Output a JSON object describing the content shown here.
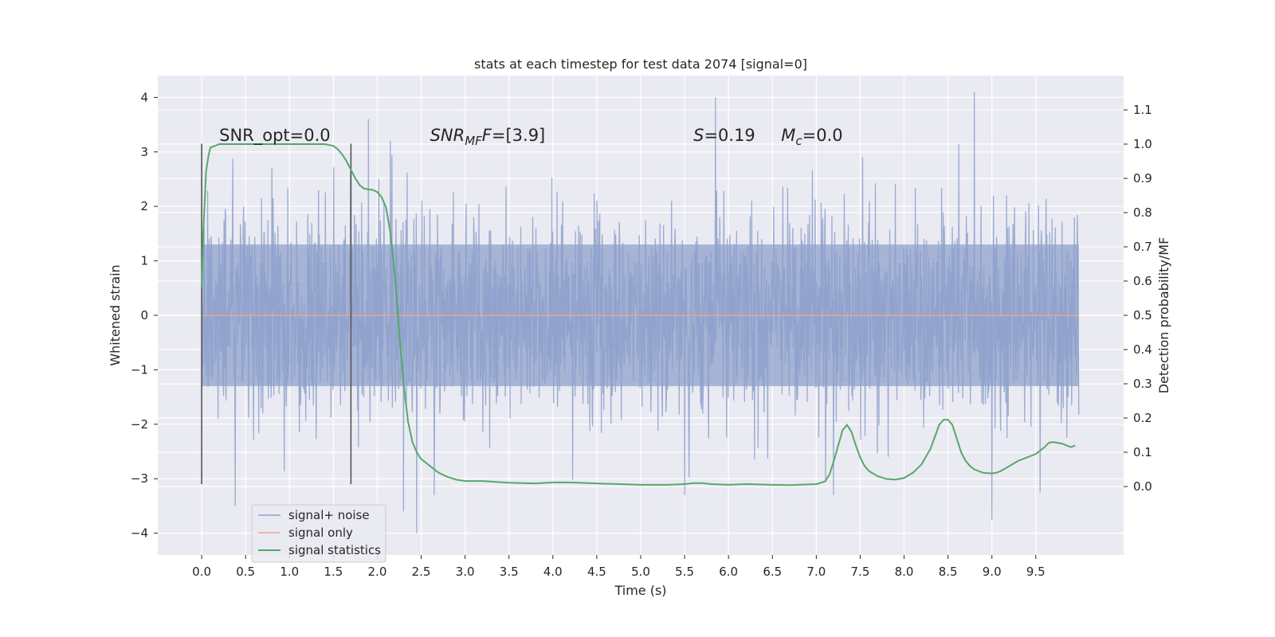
{
  "chart_data": {
    "type": "line",
    "title": "stats at each timestep for test data 2074 [signal=0]",
    "xlabel": "Time (s)",
    "ylabel_left": "Whitened strain",
    "ylabel_right": "Detection probability/MF",
    "xlim": [
      -0.5,
      10.5
    ],
    "ylim_left": [
      -4.4,
      4.4
    ],
    "ylim_right": [
      -0.2,
      1.2
    ],
    "x_ticks": [
      0.0,
      0.5,
      1.0,
      1.5,
      2.0,
      2.5,
      3.0,
      3.5,
      4.0,
      4.5,
      5.0,
      5.5,
      6.0,
      6.5,
      7.0,
      7.5,
      8.0,
      8.5,
      9.0,
      9.5
    ],
    "x_tick_labels": [
      "0.0",
      "0.5",
      "1.0",
      "1.5",
      "2.0",
      "2.5",
      "3.0",
      "3.5",
      "4.0",
      "4.5",
      "5.0",
      "5.5",
      "6.0",
      "6.5",
      "7.0",
      "7.5",
      "8.0",
      "8.5",
      "9.0",
      "9.5"
    ],
    "y_left_ticks": [
      -4,
      -3,
      -2,
      -1,
      0,
      1,
      2,
      3,
      4
    ],
    "y_left_tick_labels": [
      "−4",
      "−3",
      "−2",
      "−1",
      "0",
      "1",
      "2",
      "3",
      "4"
    ],
    "y_right_ticks": [
      0.0,
      0.1,
      0.2,
      0.3,
      0.4,
      0.5,
      0.6,
      0.7,
      0.8,
      0.9,
      1.0,
      1.1
    ],
    "y_right_tick_labels": [
      "0.0",
      "0.1",
      "0.2",
      "0.3",
      "0.4",
      "0.5",
      "0.6",
      "0.7",
      "0.8",
      "0.9",
      "1.0",
      "1.1"
    ],
    "grid": true,
    "legend_position": "lower-left",
    "noise_series": {
      "name": "signal+ noise",
      "color": "#8da0cb",
      "x_range": [
        0.0,
        9.99
      ],
      "typical_band": [
        -1.3,
        1.3
      ],
      "extremes": [
        {
          "x": 0.38,
          "y": -3.5
        },
        {
          "x": 1.9,
          "y": 3.6
        },
        {
          "x": 2.3,
          "y": -3.6
        },
        {
          "x": 2.45,
          "y": -4.0
        },
        {
          "x": 5.5,
          "y": -3.3
        },
        {
          "x": 5.85,
          "y": 4.0
        },
        {
          "x": 8.8,
          "y": 4.1
        },
        {
          "x": 9.0,
          "y": -3.75
        },
        {
          "x": 9.55,
          "y": -3.25
        }
      ]
    },
    "signal_only_series": {
      "name": "signal only",
      "color": "#e5a88a",
      "x": [
        0.0,
        9.99
      ],
      "y": [
        0.0,
        0.0
      ]
    },
    "stats_series": {
      "name": "signal statistics",
      "color": "#55a868",
      "x": [
        0.0,
        0.02,
        0.05,
        0.08,
        0.1,
        0.15,
        0.2,
        0.3,
        0.5,
        0.8,
        1.0,
        1.2,
        1.4,
        1.5,
        1.55,
        1.6,
        1.65,
        1.7,
        1.75,
        1.8,
        1.85,
        1.9,
        1.95,
        2.0,
        2.05,
        2.1,
        2.15,
        2.2,
        2.25,
        2.3,
        2.35,
        2.4,
        2.45,
        2.5,
        2.6,
        2.7,
        2.8,
        2.9,
        3.0,
        3.2,
        3.5,
        3.8,
        4.0,
        4.2,
        4.5,
        5.0,
        5.3,
        5.5,
        5.6,
        5.7,
        5.8,
        6.0,
        6.2,
        6.5,
        6.7,
        7.0,
        7.1,
        7.15,
        7.2,
        7.25,
        7.3,
        7.35,
        7.4,
        7.45,
        7.5,
        7.55,
        7.6,
        7.7,
        7.8,
        7.9,
        8.0,
        8.1,
        8.2,
        8.3,
        8.35,
        8.4,
        8.45,
        8.5,
        8.55,
        8.6,
        8.65,
        8.7,
        8.75,
        8.8,
        8.9,
        9.0,
        9.05,
        9.1,
        9.2,
        9.3,
        9.4,
        9.5,
        9.6,
        9.65,
        9.7,
        9.8,
        9.9,
        9.95
      ],
      "y": [
        0.58,
        0.75,
        0.92,
        0.97,
        0.99,
        0.995,
        1.0,
        1.0,
        1.0,
        1.0,
        1.0,
        1.0,
        1.0,
        0.995,
        0.985,
        0.97,
        0.95,
        0.925,
        0.9,
        0.88,
        0.87,
        0.868,
        0.866,
        0.86,
        0.845,
        0.815,
        0.74,
        0.62,
        0.45,
        0.3,
        0.19,
        0.13,
        0.1,
        0.08,
        0.06,
        0.04,
        0.028,
        0.02,
        0.016,
        0.016,
        0.011,
        0.009,
        0.012,
        0.012,
        0.009,
        0.005,
        0.005,
        0.007,
        0.01,
        0.01,
        0.007,
        0.005,
        0.007,
        0.005,
        0.004,
        0.007,
        0.015,
        0.035,
        0.075,
        0.12,
        0.165,
        0.18,
        0.16,
        0.12,
        0.085,
        0.06,
        0.045,
        0.03,
        0.022,
        0.02,
        0.025,
        0.04,
        0.065,
        0.11,
        0.145,
        0.18,
        0.195,
        0.195,
        0.18,
        0.14,
        0.1,
        0.075,
        0.06,
        0.05,
        0.04,
        0.038,
        0.04,
        0.045,
        0.06,
        0.075,
        0.085,
        0.095,
        0.115,
        0.128,
        0.13,
        0.125,
        0.115,
        0.12
      ]
    },
    "vertical_lines": [
      {
        "x": 0.0,
        "y_from": -3.1,
        "y_to": 3.15
      },
      {
        "x": 1.7,
        "y_from": -3.1,
        "y_to": 3.15
      }
    ],
    "annotations": [
      {
        "id": "snr-opt",
        "text": "SNR_opt=0.0",
        "x": 0.2,
        "y": 3.2
      },
      {
        "id": "snr-mf",
        "base": "SNR",
        "sub": "MF",
        "rest": "F=[3.9]",
        "x": 2.6,
        "y": 3.2
      },
      {
        "id": "s-stat",
        "base": "S",
        "rest": "=0.19",
        "x": 5.6,
        "y": 3.2
      },
      {
        "id": "mc",
        "base": "M",
        "sub": "c",
        "rest": "=0.0",
        "x": 6.6,
        "y": 3.2
      }
    ]
  }
}
